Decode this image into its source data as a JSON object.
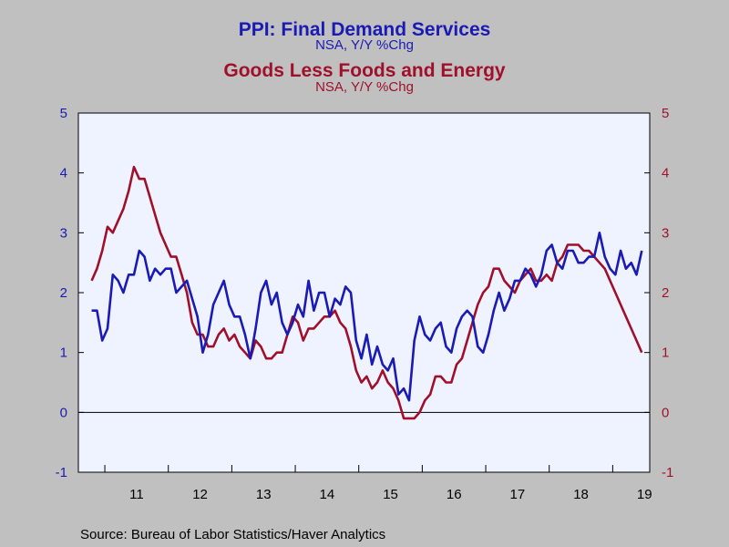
{
  "chart_data": {
    "type": "line",
    "title": "PPI: Final Demand Services",
    "subtitle": "NSA, Y/Y %Chg",
    "title2": "Goods Less Foods and Energy",
    "subtitle2": "NSA, Y/Y %Chg",
    "source": "Source:  Bureau of Labor Statistics/Haver Analytics",
    "x_ticks": [
      "11",
      "12",
      "13",
      "14",
      "15",
      "16",
      "17",
      "18",
      "19"
    ],
    "y_left_ticks": [
      "5",
      "4",
      "3",
      "2",
      "1",
      "0",
      "-1"
    ],
    "y_right_ticks": [
      "5",
      "4",
      "3",
      "2",
      "1",
      "0",
      "-1"
    ],
    "ylim": [
      -1,
      5
    ],
    "xlim": [
      2010.583,
      2019.583
    ],
    "grid": false,
    "colors": {
      "services": "#1a1ab4",
      "goods": "#a0102a",
      "plot_bg": "#eef3ff",
      "page_bg": "#c0c0c0"
    },
    "series": [
      {
        "name": "PPI: Final Demand Services",
        "axis": "left",
        "start": 2010.792,
        "step": 0.08333,
        "values": [
          1.7,
          1.7,
          1.2,
          1.4,
          2.3,
          2.2,
          2.0,
          2.3,
          2.3,
          2.7,
          2.6,
          2.2,
          2.4,
          2.3,
          2.4,
          2.4,
          2.0,
          2.1,
          2.2,
          1.9,
          1.6,
          1.0,
          1.3,
          1.8,
          2.0,
          2.2,
          1.8,
          1.6,
          1.6,
          1.3,
          0.9,
          1.4,
          2.0,
          2.2,
          1.8,
          2.0,
          1.5,
          1.3,
          1.5,
          1.8,
          1.6,
          2.2,
          1.7,
          2.0,
          2.0,
          1.6,
          1.9,
          1.8,
          2.1,
          2.0,
          1.2,
          0.9,
          1.3,
          0.8,
          1.1,
          0.8,
          0.7,
          0.9,
          0.3,
          0.4,
          0.2,
          1.2,
          1.6,
          1.3,
          1.2,
          1.4,
          1.5,
          1.1,
          1.0,
          1.4,
          1.6,
          1.7,
          1.6,
          1.1,
          1.0,
          1.3,
          1.7,
          2.0,
          1.7,
          1.9,
          2.2,
          2.2,
          2.4,
          2.3,
          2.1,
          2.3,
          2.7,
          2.8,
          2.5,
          2.4,
          2.7,
          2.7,
          2.5,
          2.5,
          2.6,
          2.6,
          3.0,
          2.6,
          2.4,
          2.3,
          2.7,
          2.4,
          2.5,
          2.3,
          2.7
        ]
      },
      {
        "name": "Goods Less Foods and Energy",
        "axis": "right",
        "start": 2010.792,
        "step": 0.08333,
        "values": [
          2.2,
          2.4,
          2.7,
          3.1,
          3.0,
          3.2,
          3.4,
          3.7,
          4.1,
          3.9,
          3.9,
          3.6,
          3.3,
          3.0,
          2.8,
          2.6,
          2.6,
          2.3,
          2.0,
          1.5,
          1.3,
          1.3,
          1.1,
          1.1,
          1.3,
          1.4,
          1.2,
          1.3,
          1.1,
          1.0,
          0.9,
          1.2,
          1.1,
          0.9,
          0.9,
          1.0,
          1.0,
          1.3,
          1.6,
          1.5,
          1.2,
          1.4,
          1.4,
          1.5,
          1.6,
          1.6,
          1.7,
          1.5,
          1.4,
          1.1,
          0.7,
          0.5,
          0.6,
          0.4,
          0.5,
          0.7,
          0.5,
          0.4,
          0.2,
          -0.1,
          -0.1,
          -0.1,
          0.0,
          0.2,
          0.3,
          0.6,
          0.6,
          0.5,
          0.5,
          0.8,
          0.9,
          1.2,
          1.5,
          1.8,
          2.0,
          2.1,
          2.4,
          2.4,
          2.2,
          2.1,
          2.0,
          2.2,
          2.3,
          2.4,
          2.2,
          2.2,
          2.3,
          2.2,
          2.5,
          2.6,
          2.8,
          2.8,
          2.8,
          2.7,
          2.7,
          2.6,
          2.5,
          2.4,
          2.2,
          2.0,
          1.8,
          1.6,
          1.4,
          1.2,
          1.0
        ]
      }
    ]
  }
}
